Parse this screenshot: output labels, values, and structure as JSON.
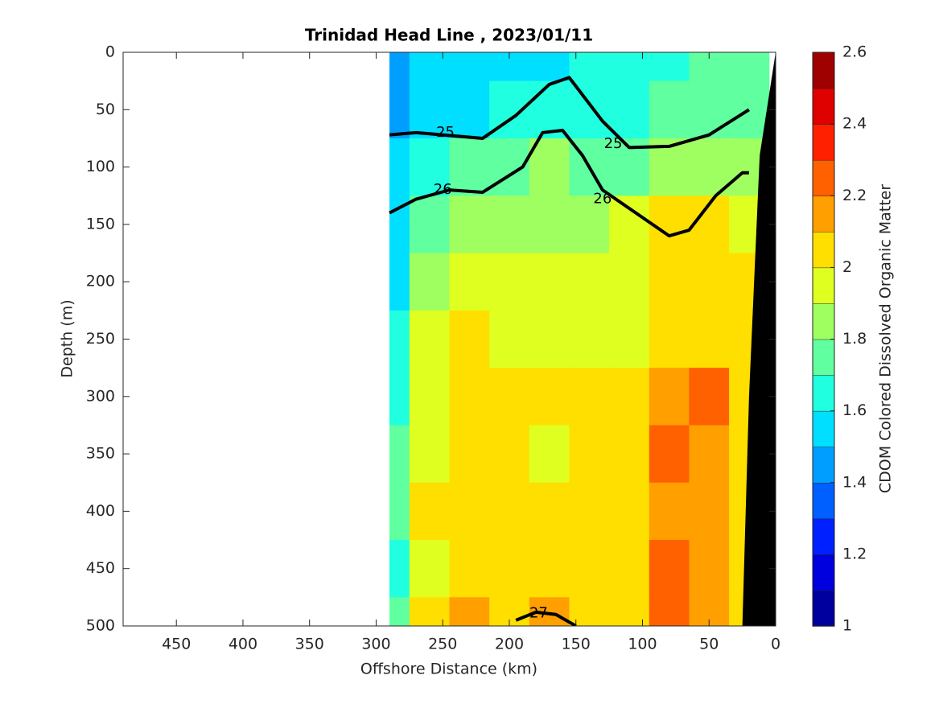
{
  "chart_data": {
    "type": "contour",
    "title": "Trinidad Head Line , 2023/01/11",
    "x_label": "Offshore Distance (km)",
    "y_label": "Depth (m)",
    "colorbar_label": "CDOM Colored Dissolved Organic Matter",
    "xlim": [
      490,
      0
    ],
    "xticks": [
      450,
      400,
      350,
      300,
      250,
      200,
      150,
      100,
      50,
      0
    ],
    "ylim": [
      0,
      500
    ],
    "yticks": [
      0,
      50,
      100,
      150,
      200,
      250,
      300,
      350,
      400,
      450,
      500
    ],
    "clim": [
      1,
      2.6
    ],
    "cticks": [
      1,
      1.2,
      1.4,
      1.6,
      1.8,
      2,
      2.2,
      2.4,
      2.6
    ],
    "levels": 16,
    "colormap": "jet",
    "x": [
      290,
      260,
      230,
      200,
      170,
      140,
      110,
      80,
      50,
      20
    ],
    "depth": [
      0,
      50,
      100,
      150,
      200,
      250,
      300,
      350,
      400,
      450,
      500
    ],
    "values": [
      [
        1.4,
        1.5,
        1.5,
        1.5,
        1.5,
        1.6,
        1.6,
        1.6,
        1.7,
        1.7
      ],
      [
        1.4,
        1.5,
        1.5,
        1.6,
        1.6,
        1.6,
        1.6,
        1.7,
        1.7,
        1.7
      ],
      [
        1.5,
        1.6,
        1.7,
        1.7,
        1.8,
        1.7,
        1.7,
        1.8,
        1.8,
        1.8
      ],
      [
        1.5,
        1.7,
        1.8,
        1.8,
        1.8,
        1.8,
        1.9,
        2.0,
        2.0,
        1.9
      ],
      [
        1.5,
        1.8,
        1.9,
        1.9,
        1.9,
        1.9,
        1.9,
        2.0,
        2.0,
        2.0
      ],
      [
        1.6,
        1.9,
        2.0,
        1.9,
        1.9,
        1.9,
        1.9,
        2.0,
        2.0,
        2.0
      ],
      [
        1.6,
        1.9,
        2.0,
        2.0,
        2.0,
        2.0,
        2.0,
        2.1,
        2.2,
        2.0
      ],
      [
        1.7,
        1.9,
        2.0,
        2.0,
        1.9,
        2.0,
        2.0,
        2.2,
        2.1,
        2.0
      ],
      [
        1.7,
        2.0,
        2.0,
        2.0,
        2.0,
        2.0,
        2.0,
        2.1,
        2.1,
        2.0
      ],
      [
        1.6,
        1.9,
        2.0,
        2.0,
        2.0,
        2.0,
        2.0,
        2.2,
        2.1,
        2.0
      ],
      [
        1.7,
        2.0,
        2.1,
        2.0,
        2.1,
        2.0,
        2.0,
        2.2,
        2.1,
        2.0
      ]
    ],
    "contours": [
      {
        "level": 25,
        "x": [
          290,
          270,
          250,
          220,
          195,
          170,
          155,
          130,
          110,
          80,
          50,
          20
        ],
        "depth": [
          72,
          70,
          72,
          75,
          55,
          28,
          22,
          60,
          83,
          82,
          72,
          50
        ],
        "label_x": [
          248,
          122
        ],
        "label_depth": [
          70,
          80
        ]
      },
      {
        "level": 26,
        "x": [
          290,
          270,
          245,
          220,
          190,
          175,
          160,
          145,
          130,
          105,
          80,
          65,
          45,
          25,
          20
        ],
        "depth": [
          140,
          128,
          120,
          122,
          100,
          70,
          68,
          90,
          120,
          140,
          160,
          155,
          125,
          105,
          105
        ],
        "label_x": [
          250,
          130
        ],
        "label_depth": [
          120,
          128
        ]
      },
      {
        "level": 27,
        "x": [
          195,
          180,
          165,
          150
        ],
        "depth": [
          495,
          488,
          490,
          500
        ],
        "label_x": [
          178
        ],
        "label_depth": [
          489
        ]
      }
    ],
    "bathymetry": {
      "x": [
        0,
        12,
        20,
        25,
        0
      ],
      "depth": [
        0,
        90,
        300,
        500,
        500
      ]
    }
  }
}
